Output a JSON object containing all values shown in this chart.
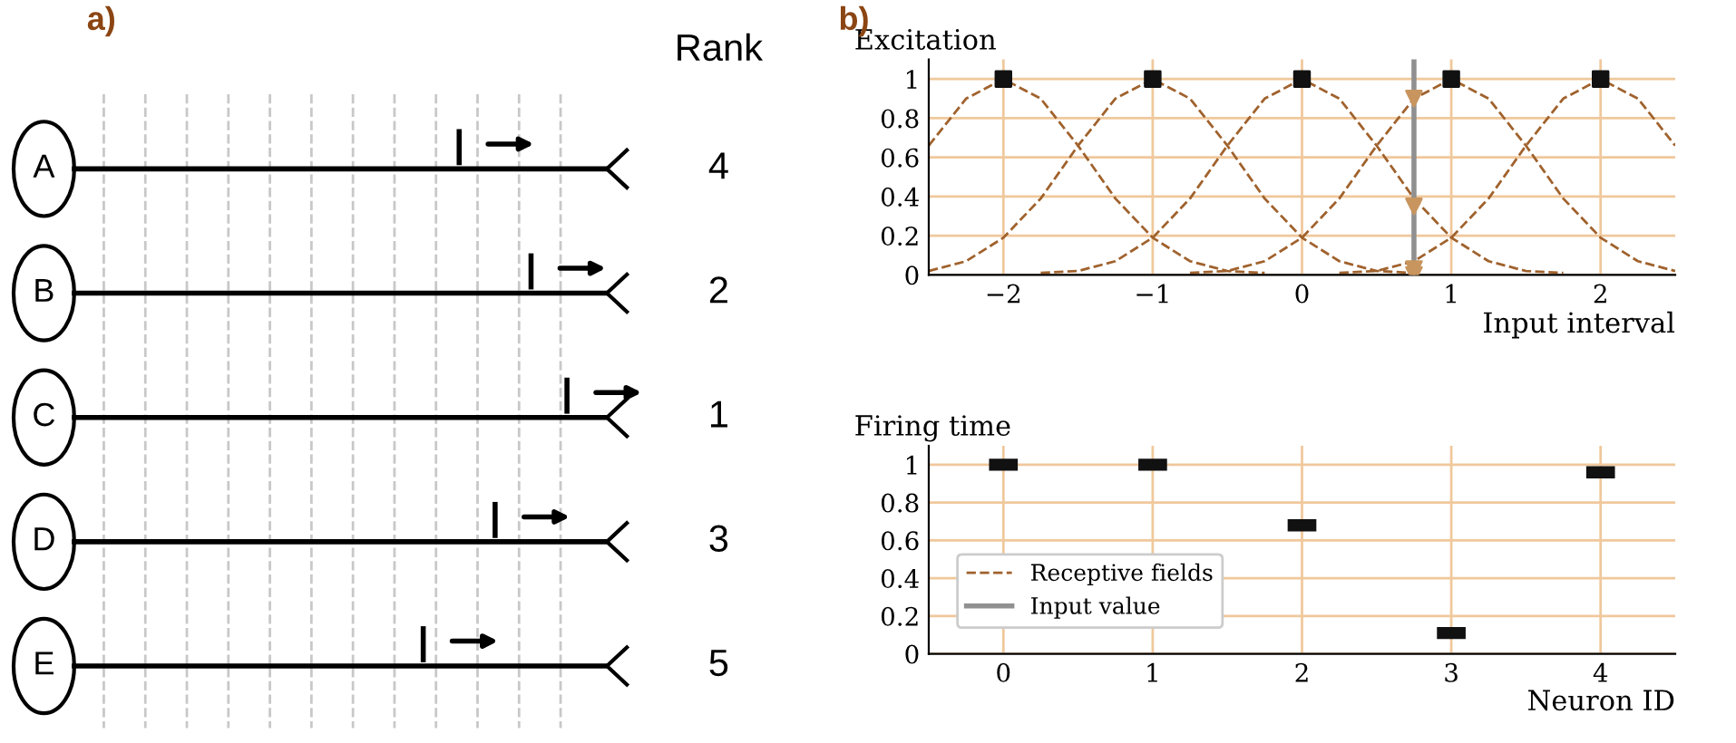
{
  "chart_data": [
    {
      "type": "other",
      "title": "Rank",
      "annotations": [
        "a)"
      ],
      "categories": [
        "A",
        "B",
        "C",
        "D",
        "E"
      ],
      "values": [
        4,
        2,
        1,
        3,
        5
      ],
      "data_labels": true
    },
    {
      "type": "line",
      "ylabel": "Excitation",
      "xlabel": "Input interval",
      "annotations": [
        "b)"
      ],
      "xlim": [
        -2.5,
        2.5
      ],
      "ylim": [
        0,
        1.1
      ],
      "xticks": [
        {
          "value": -2,
          "label": "−2"
        },
        {
          "value": -1,
          "label": "−1"
        },
        0,
        1,
        2
      ],
      "yticks": [
        0,
        0.2,
        0.4,
        0.6,
        0.8,
        1
      ],
      "grid": true,
      "legend": "bottom left",
      "series": [
        {
          "name": "Receptive fields",
          "color": "#a0622d",
          "line_style": "dashed",
          "marker": "none",
          "x": [
            -2.5,
            -2.25,
            -2,
            -1.75,
            -1.5,
            -1.25,
            -1,
            -0.75,
            -0.5,
            -0.25
          ],
          "values": [
            0.66,
            0.9,
            1,
            0.9,
            0.66,
            0.39,
            0.19,
            0.07,
            0.02,
            0.01
          ]
        },
        {
          "color": "#a0622d",
          "line_style": "dashed",
          "marker": "none",
          "x": [
            -2.5,
            -2.25,
            -2,
            -1.75,
            -1.5,
            -1.25,
            -1,
            -0.75,
            -0.5,
            -0.25,
            0,
            0.25,
            0.5,
            0.75
          ],
          "values": [
            0.02,
            0.07,
            0.19,
            0.39,
            0.66,
            0.9,
            1,
            0.9,
            0.66,
            0.39,
            0.19,
            0.07,
            0.02,
            0.01
          ]
        },
        {
          "color": "#a0622d",
          "line_style": "dashed",
          "marker": "none",
          "x": [
            -1.75,
            -1.5,
            -1.25,
            -1,
            -0.75,
            -0.5,
            -0.25,
            0,
            0.25,
            0.5,
            0.75,
            1,
            1.25,
            1.5,
            1.75
          ],
          "values": [
            0.01,
            0.02,
            0.07,
            0.19,
            0.39,
            0.66,
            0.9,
            1,
            0.9,
            0.66,
            0.39,
            0.19,
            0.07,
            0.02,
            0.01
          ]
        },
        {
          "color": "#a0622d",
          "line_style": "dashed",
          "marker": "none",
          "x": [
            -0.75,
            -0.5,
            -0.25,
            0,
            0.25,
            0.5,
            0.75,
            1,
            1.25,
            1.5,
            1.75,
            2,
            2.25,
            2.5
          ],
          "values": [
            0.01,
            0.02,
            0.07,
            0.19,
            0.39,
            0.66,
            0.9,
            1,
            0.9,
            0.66,
            0.39,
            0.19,
            0.07,
            0.02
          ]
        },
        {
          "color": "#a0622d",
          "line_style": "dashed",
          "marker": "none",
          "x": [
            0.25,
            0.5,
            0.75,
            1,
            1.25,
            1.5,
            1.75,
            2,
            2.25,
            2.5
          ],
          "values": [
            0.01,
            0.02,
            0.07,
            0.19,
            0.39,
            0.66,
            0.9,
            1,
            0.9,
            0.66
          ]
        },
        {
          "name": "Input value",
          "color": "#909090",
          "line_style": "solid",
          "marker": "none",
          "x": [
            0.75,
            0.75
          ],
          "values": [
            0,
            1.1
          ]
        },
        {
          "type": "scatter",
          "color": "#111111",
          "marker": "square",
          "x": [
            -2,
            -1,
            0,
            1,
            2
          ],
          "values": [
            1,
            1,
            1,
            1,
            1
          ]
        },
        {
          "type": "scatter",
          "color": "#c8955e",
          "marker": "triangle",
          "x": [
            0.75,
            0.75,
            0.75,
            0.75
          ],
          "values": [
            0.9,
            0.35,
            0.03,
            0
          ]
        }
      ]
    },
    {
      "type": "scatter",
      "ylabel": "Firing time",
      "xlabel": "Neuron ID",
      "xlim": [
        -0.5,
        4.5
      ],
      "ylim": [
        0,
        1.1
      ],
      "xticks": [
        0,
        1,
        2,
        3,
        4
      ],
      "yticks": [
        0,
        0.2,
        0.4,
        0.6,
        0.8,
        1
      ],
      "grid": true,
      "series": [
        {
          "color": "#111111",
          "x": [
            0,
            1,
            2,
            3,
            4
          ],
          "values": [
            1,
            1,
            0.68,
            0.11,
            0.96
          ]
        }
      ]
    }
  ]
}
